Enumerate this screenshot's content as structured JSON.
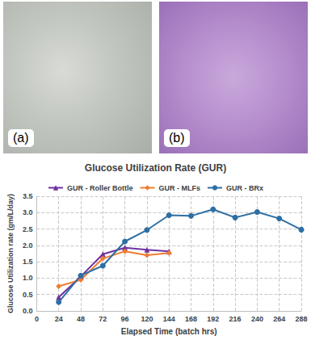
{
  "images": [
    "(a)",
    "(b)"
  ],
  "chart_data": {
    "type": "line",
    "title": "Glucose Utilization Rate (GUR)",
    "x_label": "Elapsed Time (batch hrs)",
    "y_label": "Glucose Utilization rate (gm/L/day)",
    "x": [
      24,
      48,
      72,
      96,
      120,
      144,
      168,
      192,
      216,
      240,
      264,
      288
    ],
    "series": [
      {
        "name": "GUR - Roller Bottle",
        "color": "#7030a0",
        "marker": "triangle",
        "values": [
          0.42,
          1.05,
          1.73,
          1.93,
          1.87,
          1.82,
          null,
          null,
          null,
          null,
          null,
          null
        ]
      },
      {
        "name": "GUR - MLFs",
        "color": "#ed7d31",
        "marker": "diamond",
        "values": [
          0.75,
          0.95,
          1.6,
          1.82,
          1.7,
          1.77,
          null,
          null,
          null,
          null,
          null,
          null
        ]
      },
      {
        "name": "GUR - BRx",
        "color": "#2e6fa3",
        "marker": "circle",
        "values": [
          0.27,
          1.08,
          1.38,
          2.12,
          2.47,
          2.92,
          2.9,
          3.1,
          2.85,
          3.02,
          2.82,
          2.48
        ]
      }
    ],
    "xlim": [
      0,
      288
    ],
    "xticks": [
      0,
      24,
      48,
      72,
      96,
      120,
      144,
      168,
      192,
      216,
      240,
      264,
      288
    ],
    "ylim": [
      0,
      3.5
    ],
    "yticks": [
      {
        "value": 0,
        "label": "0.0"
      },
      {
        "value": 0.5,
        "label": "0.5"
      },
      {
        "value": 1,
        "label": "1.0"
      },
      {
        "value": 1.5,
        "label": "1.5"
      },
      {
        "value": 2,
        "label": "2.0"
      },
      {
        "value": 2.5,
        "label": "2.5"
      },
      {
        "value": 3,
        "label": "3.0"
      },
      {
        "value": 3.5,
        "label": "3.5"
      }
    ],
    "grid": true,
    "legend": "top"
  }
}
